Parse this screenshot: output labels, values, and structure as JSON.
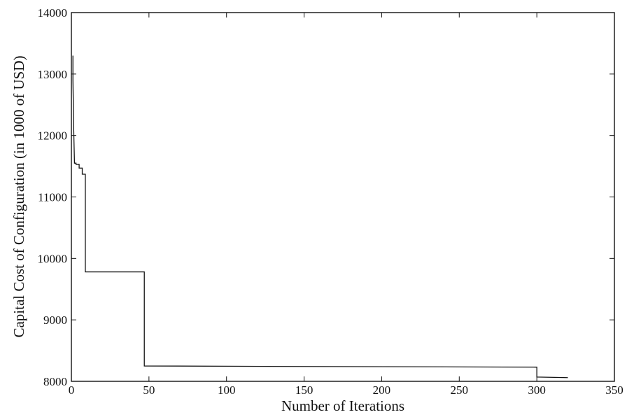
{
  "chart_data": {
    "type": "line",
    "title": "",
    "xlabel": "Number of Iterations",
    "ylabel": "Capital Cost of Configuration (in 1000 of USD)",
    "xlim": [
      0,
      350
    ],
    "ylim": [
      8000,
      14000
    ],
    "xticks": [
      0,
      50,
      100,
      150,
      200,
      250,
      300,
      350
    ],
    "yticks": [
      8000,
      9000,
      10000,
      11000,
      12000,
      13000,
      14000
    ],
    "xtick_labels": [
      "0",
      "50",
      "100",
      "150",
      "200",
      "250",
      "300",
      "350"
    ],
    "ytick_labels": [
      "8000",
      "9000",
      "10000",
      "11000",
      "12000",
      "13000",
      "14000"
    ],
    "grid": false,
    "legend": "none",
    "line_color": "#111111",
    "series": [
      {
        "x": [
          1,
          1,
          1.5,
          2,
          3,
          3,
          5,
          5,
          7,
          7,
          9,
          9,
          47,
          47,
          300,
          300,
          320
        ],
        "y": [
          13300,
          12900,
          12100,
          11550,
          11550,
          11530,
          11530,
          11470,
          11470,
          11370,
          11370,
          9780,
          9780,
          8250,
          8230,
          8070,
          8060
        ]
      }
    ]
  }
}
